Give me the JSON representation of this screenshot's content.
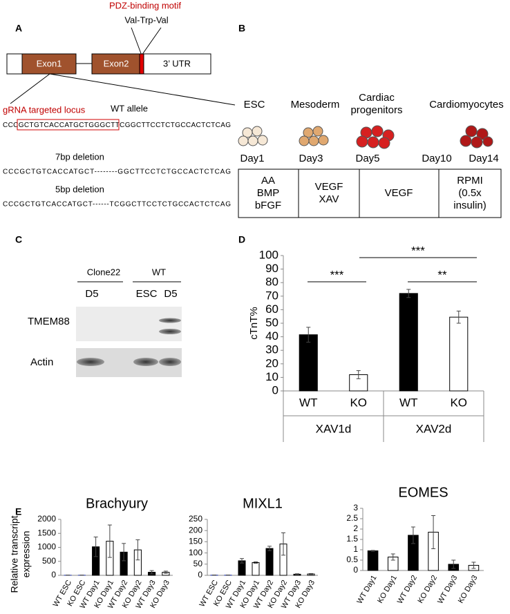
{
  "panel_a": {
    "label": "A",
    "motif": "PDZ-binding motif",
    "motif_residues": "Val-Trp-Val",
    "exons": [
      "Exon1",
      "Exon2",
      "3’ UTR"
    ],
    "grna_label": "gRNA targeted locus",
    "wt_label": "WT allele",
    "wt_sequence": [
      "CCC",
      "GCTGTCACCATGCTGGGCT",
      "TCGGCTTCCTCTGCCACTCTCAG"
    ],
    "deletions": [
      {
        "label": "7bp deletion",
        "sequence": "CCCGCTGTCACCATGCT--------GGCTTCCTCTGCCACTCTCAG"
      },
      {
        "label": "5bp deletion",
        "sequence": "CCCGCTGTCACCATGCT------TCGGCTTCCTCTGCCACTCTCAG"
      }
    ]
  },
  "panel_b": {
    "label": "B",
    "stages": [
      [
        "ESC"
      ],
      [
        "Mesoderm"
      ],
      [
        "Cardiac",
        "progenitors"
      ],
      [
        "Cardiomyocytes"
      ]
    ],
    "days": [
      "Day1",
      "Day3",
      "Day5",
      "Day10",
      "Day14"
    ],
    "media": [
      [
        "AA",
        "BMP",
        "bFGF"
      ],
      [
        "VEGF",
        "XAV"
      ],
      [
        "VEGF"
      ],
      [
        "RPMI",
        "(0.5x",
        "insulin)"
      ]
    ]
  },
  "panel_c": {
    "label": "C",
    "groups": [
      "Clone22",
      "WT"
    ],
    "lanes": [
      "D5",
      "ESC",
      "D5"
    ],
    "rows": [
      "TMEM88",
      "Actin"
    ]
  },
  "chart_data": [
    {
      "type": "bar",
      "panel_label": "D",
      "ylabel": "cTnT%",
      "categories": [
        "WT",
        "KO",
        "WT",
        "KO"
      ],
      "groups": [
        "XAV1d",
        "XAV2d"
      ],
      "values": [
        41.5,
        12,
        72,
        54.5
      ],
      "errors": [
        5.5,
        3,
        3,
        4.5
      ],
      "colors": [
        "#000000",
        "#ffffff",
        "#000000",
        "#ffffff"
      ],
      "ylim": [
        0,
        100
      ],
      "yticks": [
        0,
        10,
        20,
        30,
        40,
        50,
        60,
        70,
        80,
        90,
        100
      ],
      "annotations": [
        "***",
        "***",
        "**"
      ]
    },
    {
      "type": "bar",
      "panel_label": "E",
      "title": "Brachyury",
      "ylabel": [
        "Relative transcript",
        "expression"
      ],
      "categories": [
        "WT ESC",
        "KO ESC",
        "WT Day1",
        "KO Day1",
        "WT Day2",
        "KO Day2",
        "WT Day3",
        "KO Day3"
      ],
      "values": [
        5,
        5,
        1020,
        1220,
        830,
        910,
        110,
        110
      ],
      "errors": [
        2,
        2,
        350,
        580,
        310,
        360,
        60,
        40
      ],
      "colors": [
        "#3344aa",
        "#3344aa",
        "#000000",
        "#ffffff",
        "#000000",
        "#ffffff",
        "#000000",
        "#ffffff"
      ],
      "ylim": [
        0,
        2000
      ],
      "yticks": [
        0,
        500,
        1000,
        1500,
        2000
      ]
    },
    {
      "type": "bar",
      "title": "MIXL1",
      "categories": [
        "WT ESC",
        "KO ESC",
        "WT Day1",
        "KO Day1",
        "WT Day2",
        "KO Day2",
        "WT Day3",
        "KO Day3"
      ],
      "values": [
        1,
        1,
        65,
        57,
        120,
        140,
        5,
        6
      ],
      "errors": [
        0.5,
        0.5,
        10,
        3,
        10,
        50,
        2,
        2
      ],
      "colors": [
        "#3344aa",
        "#3344aa",
        "#000000",
        "#ffffff",
        "#000000",
        "#ffffff",
        "#000000",
        "#ffffff"
      ],
      "ylim": [
        0,
        250
      ],
      "yticks": [
        0,
        50,
        100,
        150,
        200,
        250
      ]
    },
    {
      "type": "bar",
      "title": "EOMES",
      "categories": [
        "WT Day1",
        "KO Day1",
        "WT Day2",
        "KO Day2",
        "WT Day3",
        "KO Day3"
      ],
      "values": [
        0.95,
        0.65,
        1.7,
        1.85,
        0.3,
        0.25
      ],
      "errors": [
        0.02,
        0.15,
        0.4,
        0.8,
        0.2,
        0.15
      ],
      "colors": [
        "#000000",
        "#ffffff",
        "#000000",
        "#ffffff",
        "#000000",
        "#ffffff"
      ],
      "ylim": [
        0,
        3
      ],
      "yticks": [
        0,
        0.5,
        1,
        1.5,
        2,
        2.5,
        3
      ]
    }
  ]
}
